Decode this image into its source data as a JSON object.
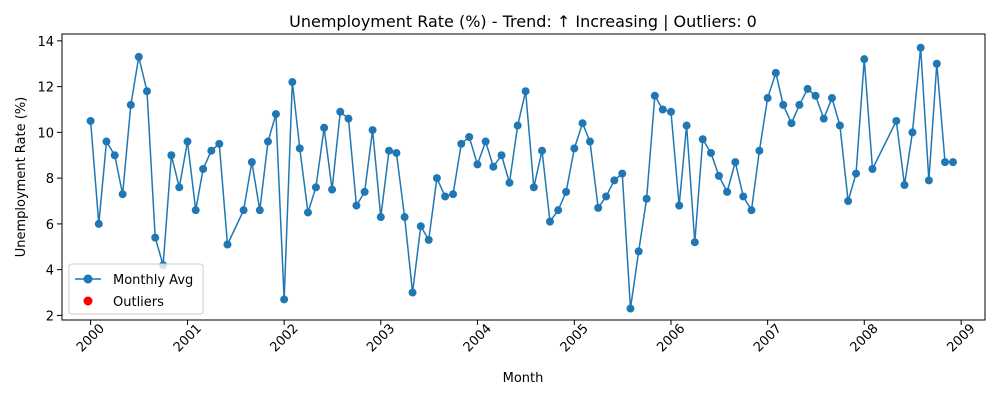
{
  "chart_data": {
    "type": "line",
    "title": "Unemployment Rate (%) - Trend: ↑ Increasing | Outliers: 0",
    "xlabel": "Month",
    "ylabel": "Unemployment Rate (%)",
    "xlim": [
      "1999-09-15",
      "2009-04-01"
    ],
    "ylim": [
      1.8,
      14.3
    ],
    "x_ticks": [
      "2000",
      "2001",
      "2002",
      "2003",
      "2004",
      "2005",
      "2006",
      "2007",
      "2008",
      "2009"
    ],
    "y_ticks": [
      "2",
      "4",
      "6",
      "8",
      "10",
      "12",
      "14"
    ],
    "grid": false,
    "legend": "lower-left",
    "colors": {
      "line": "#1f77b4",
      "outlier": "#ff0000"
    },
    "series": [
      {
        "name": "Monthly Avg",
        "points": [
          [
            "2000-01-01",
            10.5
          ],
          [
            "2000-02-01",
            6.0
          ],
          [
            "2000-03-01",
            9.6
          ],
          [
            "2000-04-01",
            9.0
          ],
          [
            "2000-05-01",
            7.3
          ],
          [
            "2000-06-01",
            11.2
          ],
          [
            "2000-07-01",
            13.3
          ],
          [
            "2000-08-01",
            11.8
          ],
          [
            "2000-09-01",
            5.4
          ],
          [
            "2000-10-01",
            4.2
          ],
          [
            "2000-11-01",
            9.0
          ],
          [
            "2000-12-01",
            7.6
          ],
          [
            "2001-01-01",
            9.6
          ],
          [
            "2001-02-01",
            6.6
          ],
          [
            "2001-03-01",
            8.4
          ],
          [
            "2001-04-01",
            9.2
          ],
          [
            "2001-05-01",
            9.5
          ],
          [
            "2001-06-01",
            5.1
          ],
          [
            "2001-08-01",
            6.6
          ],
          [
            "2001-09-01",
            8.7
          ],
          [
            "2001-10-01",
            6.6
          ],
          [
            "2001-11-01",
            9.6
          ],
          [
            "2001-12-01",
            10.8
          ],
          [
            "2002-01-01",
            2.7
          ],
          [
            "2002-02-01",
            12.2
          ],
          [
            "2002-03-01",
            9.3
          ],
          [
            "2002-04-01",
            6.5
          ],
          [
            "2002-05-01",
            7.6
          ],
          [
            "2002-06-01",
            10.2
          ],
          [
            "2002-07-01",
            7.5
          ],
          [
            "2002-08-01",
            10.9
          ],
          [
            "2002-09-01",
            10.6
          ],
          [
            "2002-10-01",
            6.8
          ],
          [
            "2002-11-01",
            7.4
          ],
          [
            "2002-12-01",
            10.1
          ],
          [
            "2003-01-01",
            6.3
          ],
          [
            "2003-02-01",
            9.2
          ],
          [
            "2003-03-01",
            9.1
          ],
          [
            "2003-04-01",
            6.3
          ],
          [
            "2003-05-01",
            3.0
          ],
          [
            "2003-06-01",
            5.9
          ],
          [
            "2003-07-01",
            5.3
          ],
          [
            "2003-08-01",
            8.0
          ],
          [
            "2003-09-01",
            7.2
          ],
          [
            "2003-10-01",
            7.3
          ],
          [
            "2003-11-01",
            9.5
          ],
          [
            "2003-12-01",
            9.8
          ],
          [
            "2004-01-01",
            8.6
          ],
          [
            "2004-02-01",
            9.6
          ],
          [
            "2004-03-01",
            8.5
          ],
          [
            "2004-04-01",
            9.0
          ],
          [
            "2004-05-01",
            7.8
          ],
          [
            "2004-06-01",
            10.3
          ],
          [
            "2004-07-01",
            11.8
          ],
          [
            "2004-08-01",
            7.6
          ],
          [
            "2004-09-01",
            9.2
          ],
          [
            "2004-10-01",
            6.1
          ],
          [
            "2004-11-01",
            6.6
          ],
          [
            "2004-12-01",
            7.4
          ],
          [
            "2005-01-01",
            9.3
          ],
          [
            "2005-02-01",
            10.4
          ],
          [
            "2005-03-01",
            9.6
          ],
          [
            "2005-04-01",
            6.7
          ],
          [
            "2005-05-01",
            7.2
          ],
          [
            "2005-06-01",
            7.9
          ],
          [
            "2005-07-01",
            8.2
          ],
          [
            "2005-08-01",
            2.3
          ],
          [
            "2005-09-01",
            4.8
          ],
          [
            "2005-10-01",
            7.1
          ],
          [
            "2005-11-01",
            11.6
          ],
          [
            "2005-12-01",
            11.0
          ],
          [
            "2006-01-01",
            10.9
          ],
          [
            "2006-02-01",
            6.8
          ],
          [
            "2006-03-01",
            10.3
          ],
          [
            "2006-04-01",
            5.2
          ],
          [
            "2006-05-01",
            9.7
          ],
          [
            "2006-06-01",
            9.1
          ],
          [
            "2006-07-01",
            8.1
          ],
          [
            "2006-08-01",
            7.4
          ],
          [
            "2006-09-01",
            8.7
          ],
          [
            "2006-10-01",
            7.2
          ],
          [
            "2006-11-01",
            6.6
          ],
          [
            "2006-12-01",
            9.2
          ],
          [
            "2007-01-01",
            11.5
          ],
          [
            "2007-02-01",
            12.6
          ],
          [
            "2007-03-01",
            11.2
          ],
          [
            "2007-04-01",
            10.4
          ],
          [
            "2007-05-01",
            11.2
          ],
          [
            "2007-06-01",
            11.9
          ],
          [
            "2007-07-01",
            11.6
          ],
          [
            "2007-08-01",
            10.6
          ],
          [
            "2007-09-01",
            11.5
          ],
          [
            "2007-10-01",
            10.3
          ],
          [
            "2007-11-01",
            7.0
          ],
          [
            "2007-12-01",
            8.2
          ],
          [
            "2008-01-01",
            13.2
          ],
          [
            "2008-02-01",
            8.4
          ],
          [
            "2008-05-01",
            10.5
          ],
          [
            "2008-06-01",
            7.7
          ],
          [
            "2008-07-01",
            10.0
          ],
          [
            "2008-08-01",
            13.7
          ],
          [
            "2008-09-01",
            7.9
          ],
          [
            "2008-10-01",
            13.0
          ],
          [
            "2008-11-01",
            8.7
          ],
          [
            "2008-12-01",
            8.7
          ]
        ]
      },
      {
        "name": "Outliers",
        "points": []
      }
    ]
  }
}
